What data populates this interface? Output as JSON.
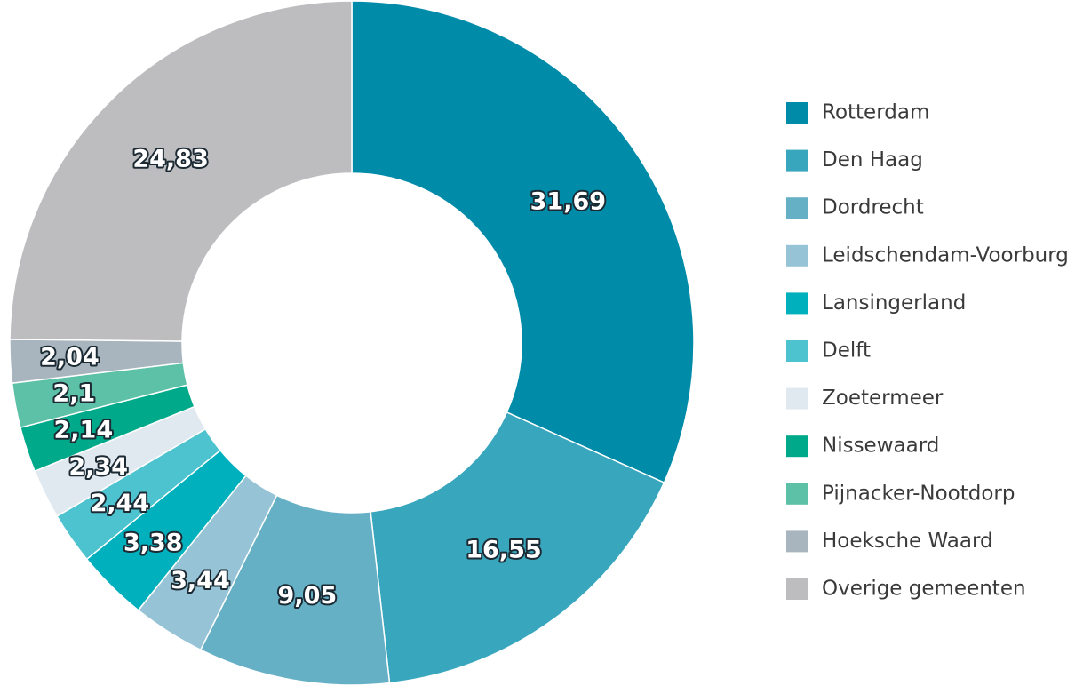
{
  "chart_data": {
    "type": "donut",
    "categories": [
      "Rotterdam",
      "Den Haag",
      "Dordrecht",
      "Leidschendam-Voorburg",
      "Lansingerland",
      "Delft",
      "Zoetermeer",
      "Nissewaard",
      "Pijnacker-Nootdorp",
      "Hoeksche Waard",
      "Overige gemeenten"
    ],
    "values": [
      31.69,
      16.55,
      9.05,
      3.44,
      3.38,
      2.44,
      2.34,
      2.14,
      2.1,
      2.04,
      24.83
    ],
    "value_labels": [
      "31,69",
      "16,55",
      "9,05",
      "3,44",
      "3,38",
      "2,44",
      "2,34",
      "2,14",
      "2,1",
      "2,04",
      "24,83"
    ],
    "colors": [
      "#008ba8",
      "#38a6bd",
      "#66b0c6",
      "#96c4d6",
      "#00b0bd",
      "#4cc3cf",
      "#e1e9f0",
      "#00a98a",
      "#5cc1a6",
      "#a8b5be",
      "#bdbdc0"
    ],
    "legend": "right"
  }
}
